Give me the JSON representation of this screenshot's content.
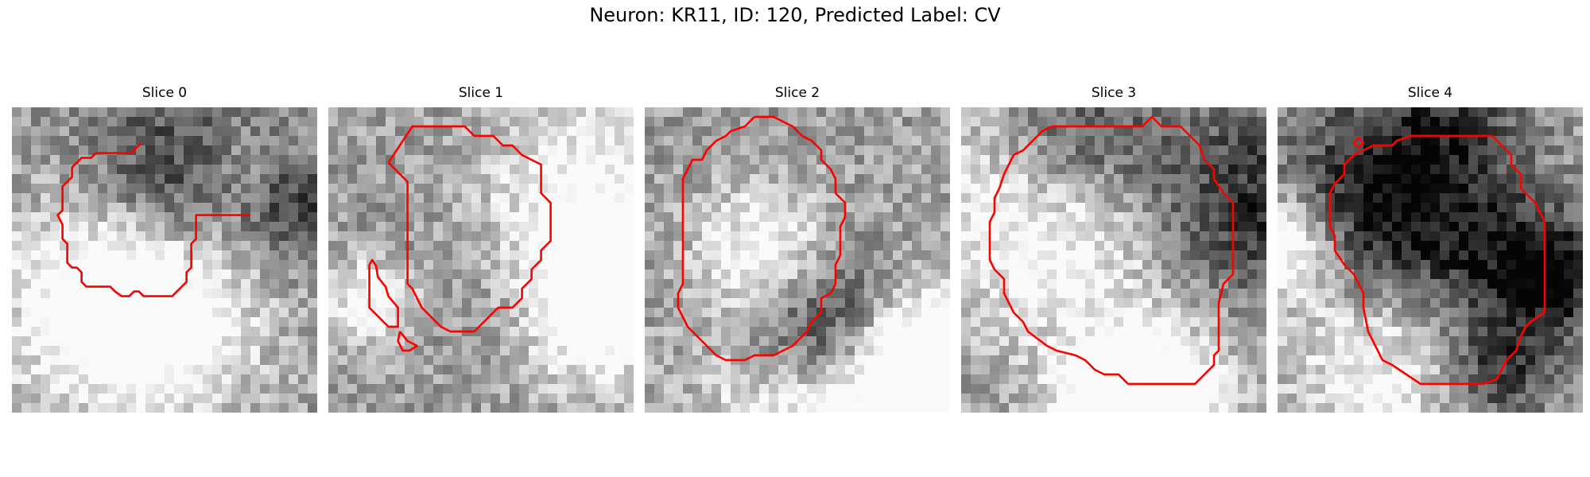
{
  "title": "Neuron: KR11, ID: 120, Predicted Label: CV",
  "colors": {
    "contour": "#ff0000",
    "background": "#ffffff"
  },
  "panels": [
    {
      "label": "Slice 0"
    },
    {
      "label": "Slice 1"
    },
    {
      "label": "Slice 2"
    },
    {
      "label": "Slice 3"
    },
    {
      "label": "Slice 4"
    }
  ]
}
